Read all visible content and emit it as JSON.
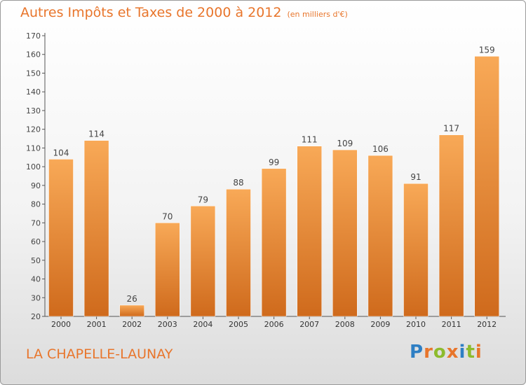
{
  "chart_data": {
    "type": "bar",
    "title": "Autres Impôts et Taxes de 2000 à 2012",
    "subtitle": "(en milliers d'€)",
    "categories": [
      "2000",
      "2001",
      "2002",
      "2003",
      "2004",
      "2005",
      "2006",
      "2007",
      "2008",
      "2009",
      "2010",
      "2011",
      "2012"
    ],
    "values": [
      104,
      114,
      26,
      70,
      79,
      88,
      99,
      111,
      109,
      106,
      91,
      117,
      159
    ],
    "xlabel": "",
    "ylabel": "",
    "ylim": [
      20,
      170
    ],
    "yticks": [
      20,
      30,
      40,
      50,
      60,
      70,
      80,
      90,
      100,
      110,
      120,
      130,
      140,
      150,
      160,
      170
    ],
    "grid": false,
    "legend": "none",
    "bar_color": "#f0913a",
    "bar_color_light": "#f8a957",
    "bar_color_dark": "#cf6a1c"
  },
  "commune": "LA CHAPELLE-LAUNAY",
  "logo": {
    "letters": [
      {
        "char": "P",
        "color": "#2e7fc4"
      },
      {
        "char": "r",
        "color": "#e8752b"
      },
      {
        "char": "o",
        "color": "#8dbb2d"
      },
      {
        "char": "x",
        "color": "#e8752b"
      },
      {
        "char": "i",
        "color": "#2e7fc4"
      },
      {
        "char": "t",
        "color": "#8dbb2d"
      },
      {
        "char": "i",
        "color": "#e8752b"
      }
    ]
  }
}
